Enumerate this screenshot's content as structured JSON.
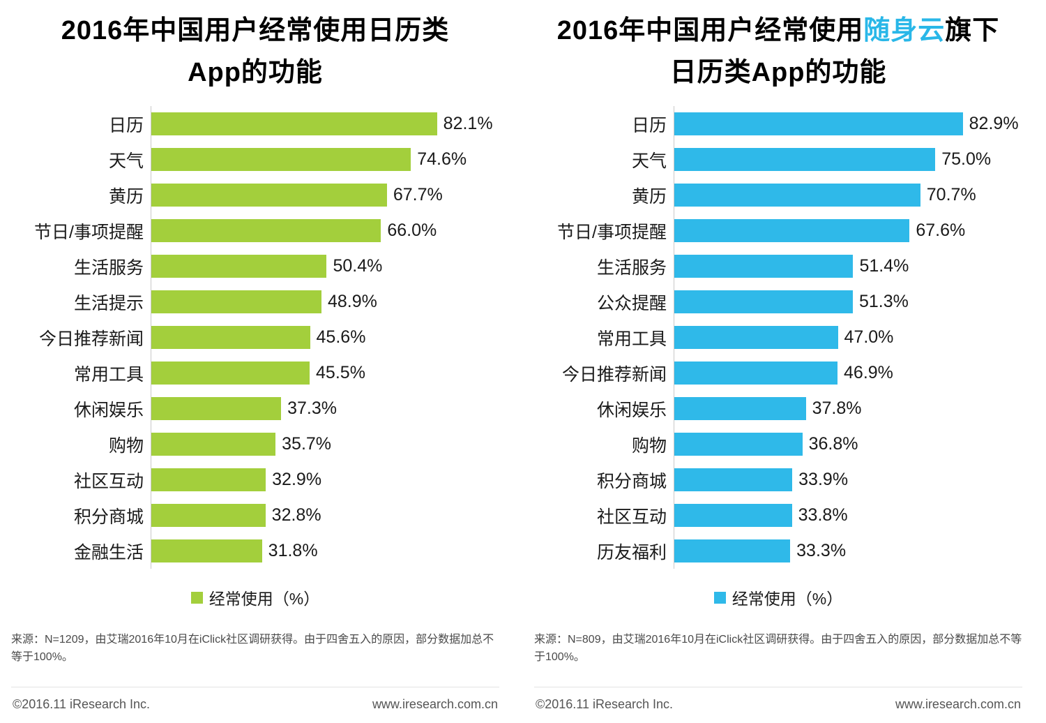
{
  "chart_data": [
    {
      "type": "bar",
      "orientation": "horizontal",
      "title": "2016年中国用户经常使用日历类App的功能",
      "title_lines": [
        [
          {
            "text": "2016年中国用户经常使用日历类"
          }
        ],
        [
          {
            "text": "App的功能"
          }
        ]
      ],
      "categories": [
        "日历",
        "天气",
        "黄历",
        "节日/事项提醒",
        "生活服务",
        "生活提示",
        "今日推荐新闻",
        "常用工具",
        "休闲娱乐",
        "购物",
        "社区互动",
        "积分商城",
        "金融生活"
      ],
      "values": [
        82.1,
        74.6,
        67.7,
        66.0,
        50.4,
        48.9,
        45.6,
        45.5,
        37.3,
        35.7,
        32.9,
        32.8,
        31.8
      ],
      "value_labels": [
        "82.1%",
        "74.6%",
        "67.7%",
        "66.0%",
        "50.4%",
        "48.9%",
        "45.6%",
        "45.5%",
        "37.3%",
        "35.7%",
        "32.9%",
        "32.8%",
        "31.8%"
      ],
      "unit": "%",
      "xlim": [
        0,
        100
      ],
      "grid": false,
      "legend_position": "bottom",
      "bar_color": "#a3cf3c",
      "highlight_color": "#29b7e8",
      "legend": "经常使用（%）",
      "source_note": "来源：N=1209，由艾瑞2016年10月在iClick社区调研获得。由于四舍五入的原因，部分数据加总不等于100%。",
      "footer_left": "©2016.11 iResearch Inc.",
      "footer_right": "www.iresearch.com.cn"
    },
    {
      "type": "bar",
      "orientation": "horizontal",
      "title": "2016年中国用户经常使用随身云旗下日历类App的功能",
      "title_lines": [
        [
          {
            "text": "2016年中国用户经常使用"
          },
          {
            "text": "随身云",
            "highlight": true
          },
          {
            "text": "旗下"
          }
        ],
        [
          {
            "text": "日历类App的功能"
          }
        ]
      ],
      "categories": [
        "日历",
        "天气",
        "黄历",
        "节日/事项提醒",
        "生活服务",
        "公众提醒",
        "常用工具",
        "今日推荐新闻",
        "休闲娱乐",
        "购物",
        "积分商城",
        "社区互动",
        "历友福利"
      ],
      "values": [
        82.9,
        75.0,
        70.7,
        67.6,
        51.4,
        51.3,
        47.0,
        46.9,
        37.8,
        36.8,
        33.9,
        33.8,
        33.3
      ],
      "value_labels": [
        "82.9%",
        "75.0%",
        "70.7%",
        "67.6%",
        "51.4%",
        "51.3%",
        "47.0%",
        "46.9%",
        "37.8%",
        "36.8%",
        "33.9%",
        "33.8%",
        "33.3%"
      ],
      "unit": "%",
      "xlim": [
        0,
        100
      ],
      "grid": false,
      "legend_position": "bottom",
      "bar_color": "#2fb9e9",
      "highlight_color": "#29b7e8",
      "legend": "经常使用（%）",
      "source_note": "来源：N=809，由艾瑞2016年10月在iClick社区调研获得。由于四舍五入的原因，部分数据加总不等于100%。",
      "footer_left": "©2016.11 iResearch Inc.",
      "footer_right": "www.iresearch.com.cn"
    }
  ]
}
